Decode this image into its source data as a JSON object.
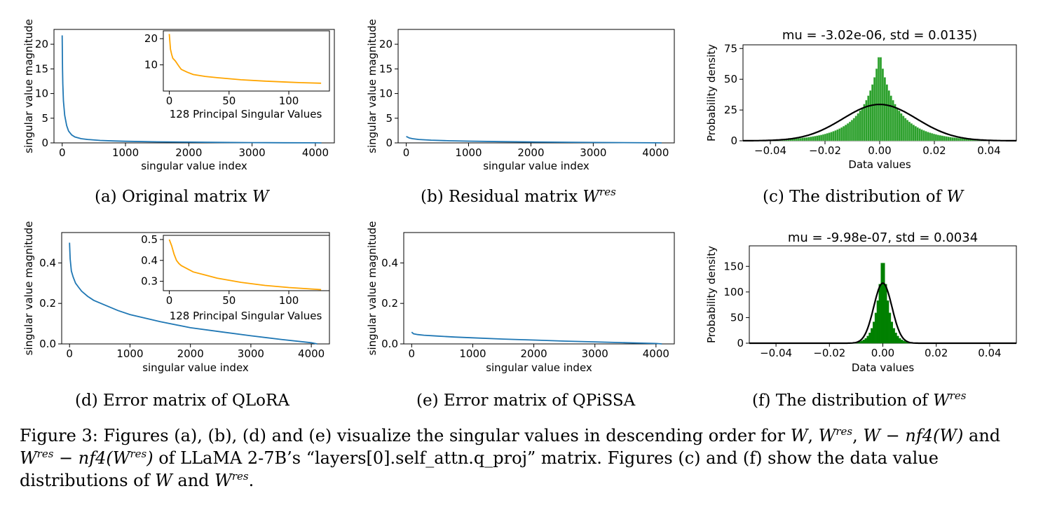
{
  "chart_data": [
    {
      "id": "a",
      "type": "line",
      "ylabel": "singular value magnitude",
      "xlabel": "singular value index",
      "xlim": [
        -130,
        4300
      ],
      "ylim": [
        0,
        23
      ],
      "xticks": [
        0,
        1000,
        2000,
        3000,
        4000
      ],
      "yticks": [
        0,
        5,
        10,
        15,
        20
      ],
      "color": "#1f77b4",
      "series": [
        {
          "x": [
            0,
            5,
            10,
            20,
            40,
            70,
            100,
            150,
            200,
            300,
            400,
            600,
            800,
            1000,
            1500,
            2000,
            2500,
            3000,
            3500,
            4000,
            4096
          ],
          "y": [
            21.8,
            15,
            12,
            8.5,
            5.6,
            3.5,
            2.4,
            1.6,
            1.2,
            0.85,
            0.7,
            0.5,
            0.4,
            0.32,
            0.22,
            0.15,
            0.1,
            0.06,
            0.03,
            0.01,
            0
          ]
        }
      ],
      "inset": {
        "xlabel": "128 Principal Singular Values",
        "xlim": [
          -5,
          134
        ],
        "ylim": [
          0,
          23
        ],
        "xticks": [
          0,
          50,
          100
        ],
        "yticks": [
          10,
          20
        ],
        "color": "#ffa500",
        "series": [
          {
            "x": [
              0,
              1,
              2,
              3,
              5,
              8,
              10,
              15,
              20,
              30,
              40,
              50,
              60,
              80,
              100,
              110,
              127
            ],
            "y": [
              21.8,
              16,
              14,
              12.5,
              11.5,
              9.5,
              8.3,
              7.2,
              6.3,
              5.6,
              5.1,
              4.7,
              4.3,
              3.8,
              3.4,
              3.2,
              3.0
            ]
          }
        ]
      }
    },
    {
      "id": "b",
      "type": "line",
      "ylabel": "singular value magnitude",
      "xlabel": "singular value index",
      "xlim": [
        -130,
        4300
      ],
      "ylim": [
        0,
        23
      ],
      "xticks": [
        0,
        1000,
        2000,
        3000,
        4000
      ],
      "yticks": [
        0,
        5,
        10,
        15,
        20
      ],
      "color": "#1f77b4",
      "series": [
        {
          "x": [
            0,
            50,
            100,
            200,
            400,
            700,
            1000,
            1500,
            2000,
            3000,
            4000,
            4096
          ],
          "y": [
            1.3,
            1.0,
            0.85,
            0.7,
            0.55,
            0.42,
            0.35,
            0.25,
            0.18,
            0.08,
            0.01,
            0
          ]
        }
      ]
    },
    {
      "id": "c",
      "type": "histogram",
      "title": "mu = -3.02e-06, std = 0.0135)",
      "ylabel": "Probability density",
      "xlabel": "Data values",
      "xlim": [
        -0.05,
        0.05
      ],
      "ylim": [
        0,
        78
      ],
      "xticks": [
        -0.04,
        -0.02,
        0.0,
        0.02,
        0.04
      ],
      "xticklabels": [
        "−0.04",
        "−0.02",
        "0.00",
        "0.02",
        "0.04"
      ],
      "yticks": [
        0,
        25,
        50,
        75
      ],
      "hist_color": "#2ca02c",
      "hist_peak": 75,
      "hist_scale": 0.0062,
      "hist_shape": "laplace",
      "fit": {
        "mu": -3.02e-06,
        "std": 0.0135,
        "color": "#000000"
      }
    },
    {
      "id": "d",
      "type": "line",
      "ylabel": "singular value magnitude",
      "xlabel": "singular value index",
      "xlim": [
        -130,
        4300
      ],
      "ylim": [
        0,
        0.55
      ],
      "xticks": [
        0,
        1000,
        2000,
        3000,
        4000
      ],
      "yticks": [
        0.0,
        0.2,
        0.4
      ],
      "yticklabels": [
        "0.0",
        "0.2",
        "0.4"
      ],
      "color": "#1f77b4",
      "series": [
        {
          "x": [
            0,
            10,
            30,
            60,
            100,
            150,
            200,
            300,
            400,
            600,
            800,
            1000,
            1500,
            2000,
            2500,
            3000,
            3500,
            4000,
            4096
          ],
          "y": [
            0.5,
            0.42,
            0.36,
            0.33,
            0.3,
            0.28,
            0.26,
            0.235,
            0.215,
            0.19,
            0.165,
            0.145,
            0.11,
            0.08,
            0.06,
            0.04,
            0.022,
            0.006,
            0
          ]
        }
      ],
      "inset": {
        "xlabel": "128 Principal Singular Values",
        "xlim": [
          -5,
          134
        ],
        "ylim": [
          0.255,
          0.52
        ],
        "xticks": [
          0,
          50,
          100
        ],
        "yticks": [
          0.3,
          0.4,
          0.5
        ],
        "yticklabels": [
          "0.3",
          "0.4",
          "0.5"
        ],
        "color": "#ffa500",
        "series": [
          {
            "x": [
              0,
              2,
              4,
              6,
              8,
              10,
              15,
              20,
              30,
              40,
              50,
              60,
              80,
              100,
              127
            ],
            "y": [
              0.5,
              0.47,
              0.43,
              0.4,
              0.385,
              0.375,
              0.36,
              0.345,
              0.33,
              0.315,
              0.305,
              0.295,
              0.28,
              0.27,
              0.26
            ]
          }
        ]
      }
    },
    {
      "id": "e",
      "type": "line",
      "ylabel": "singular value magnitude",
      "xlabel": "singular value index",
      "xlim": [
        -130,
        4300
      ],
      "ylim": [
        0,
        0.55
      ],
      "xticks": [
        0,
        1000,
        2000,
        3000,
        4000
      ],
      "yticks": [
        0.0,
        0.2,
        0.4
      ],
      "yticklabels": [
        "0.0",
        "0.2",
        "0.4"
      ],
      "color": "#1f77b4",
      "series": [
        {
          "x": [
            0,
            30,
            100,
            200,
            400,
            700,
            1000,
            1500,
            2000,
            2500,
            3000,
            3500,
            4000,
            4096
          ],
          "y": [
            0.058,
            0.05,
            0.046,
            0.043,
            0.039,
            0.034,
            0.03,
            0.024,
            0.019,
            0.014,
            0.01,
            0.006,
            0.002,
            0
          ]
        }
      ]
    },
    {
      "id": "f",
      "type": "histogram",
      "title": "mu = -9.98e-07, std = 0.0034",
      "ylabel": "Probability density",
      "xlabel": "Data values",
      "xlim": [
        -0.05,
        0.05
      ],
      "ylim": [
        0,
        190
      ],
      "xticks": [
        -0.04,
        -0.02,
        0.0,
        0.02,
        0.04
      ],
      "xticklabels": [
        "−0.04",
        "−0.02",
        "0.00",
        "0.02",
        "0.04"
      ],
      "yticks": [
        0,
        50,
        100,
        150
      ],
      "hist_color": "#008000",
      "hist_peak": 178,
      "hist_scale": 0.0024,
      "hist_shape": "peaked",
      "fit": {
        "mu": -9.98e-07,
        "std": 0.0034,
        "color": "#000000"
      }
    }
  ],
  "subcaptions": {
    "a": {
      "text": "(a) Original matrix ",
      "sym": "W",
      "sup": ""
    },
    "b": {
      "text": "(b) Residual matrix ",
      "sym": "W",
      "sup": "res"
    },
    "c": {
      "text": "(c) The distribution of ",
      "sym": "W",
      "sup": ""
    },
    "d": {
      "text": "(d) Error matrix of QLoRA",
      "sym": "",
      "sup": ""
    },
    "e": {
      "text": "(e) Error matrix of QPiSSA",
      "sym": "",
      "sup": ""
    },
    "f": {
      "text": "(f) The distribution of ",
      "sym": "W",
      "sup": "res"
    }
  },
  "caption": {
    "p1": "Figure 3: Figures (a), (b), (d) and (e) visualize the singular values in descending order for ",
    "m1": "W",
    "c1": ", ",
    "m2": "W",
    "s2": "res",
    "c2": ", ",
    "m3": "W − nf4(W)",
    "p2": " and ",
    "m4": "W",
    "s4": "res",
    "m5": " − nf4(W",
    "s5": "res",
    "m6": ")",
    "p3": " of LLaMA 2-7B’s “layers[0].self_attn.q_proj” matrix. Figures (c) and (f) show the data value distributions of ",
    "m7": "W",
    "p4": " and ",
    "m8": "W",
    "s8": "res",
    "p5": "."
  }
}
